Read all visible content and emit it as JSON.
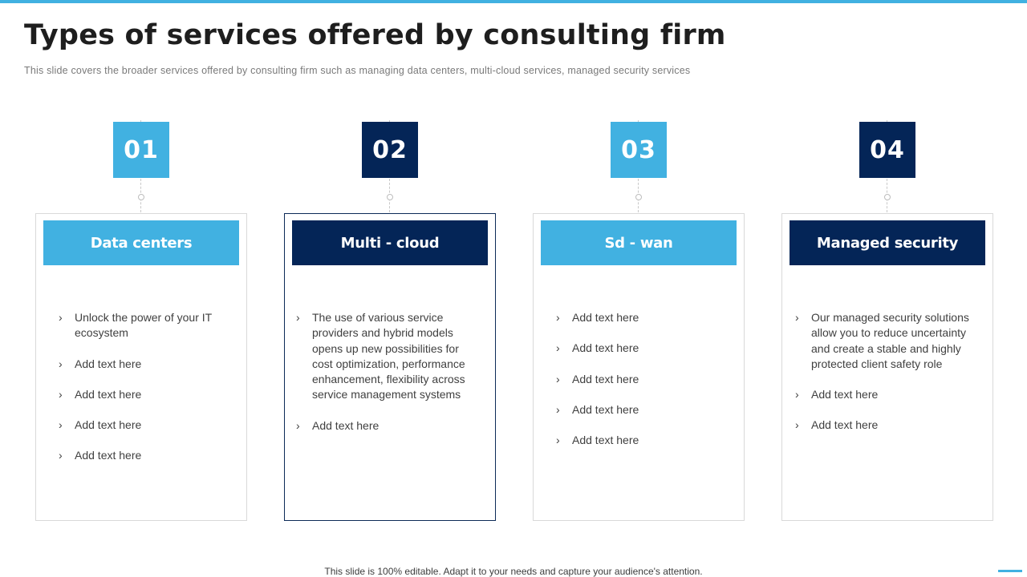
{
  "title": "Types of services offered by consulting firm",
  "subtitle": "This slide covers the broader services offered  by consulting firm such as managing data centers, multi-cloud services, managed security services",
  "columns": [
    {
      "number": "01",
      "heading": "Data centers",
      "items": [
        "Unlock the power of your IT ecosystem",
        "Add text here",
        "Add text here",
        "Add text here",
        "Add text here"
      ]
    },
    {
      "number": "02",
      "heading": "Multi - cloud",
      "items": [
        "The use of various service providers and hybrid models opens up new possibilities for cost optimization, performance enhancement, flexibility across service management systems",
        "Add text here"
      ]
    },
    {
      "number": "03",
      "heading": "Sd - wan",
      "items": [
        "Add text here",
        "Add text here",
        "Add text here",
        "Add text here",
        "Add text here"
      ]
    },
    {
      "number": "04",
      "heading": "Managed security",
      "items": [
        "Our managed security solutions allow you to reduce uncertainty and create a stable and highly protected client safety role",
        "Add text here",
        "Add text here"
      ]
    }
  ],
  "bullet_icon": "chevron-right-icon",
  "footer": "This slide is 100% editable. Adapt it to your needs and capture your audience's attention.",
  "colors": {
    "accent_light": "#41b1e1",
    "accent_dark": "#042557",
    "title_text": "#1e1e1e",
    "body_text": "#404040"
  }
}
